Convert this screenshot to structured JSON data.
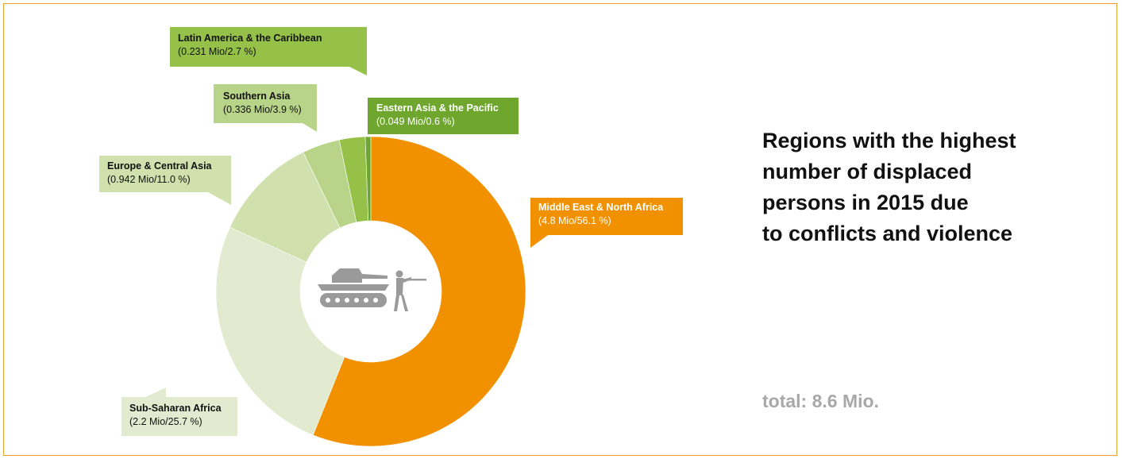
{
  "heading": {
    "lines": [
      "Regions with the highest",
      "number of displaced",
      "persons in 2015 due",
      "to conflicts and violence"
    ]
  },
  "total": "total: 8.6 Mio.",
  "center_icon": "tank-and-soldier-icon",
  "colors": {
    "frame": "#f0a030",
    "callout_text_dark": "#111111",
    "callout_text_light": "#ffffff"
  },
  "chart_data": {
    "type": "pie",
    "donut": true,
    "title": "Regions with the highest number of displaced persons in 2015 due to conflicts and violence",
    "unit": "Mio",
    "total": 8.6,
    "segments": [
      {
        "name": "Middle East & North Africa",
        "value": 4.8,
        "percent": 56.1,
        "label": "(4.8 Mio/56.1 %)",
        "color": "#f29100"
      },
      {
        "name": "Sub-Saharan Africa",
        "value": 2.2,
        "percent": 25.7,
        "label": "(2.2 Mio/25.7 %)",
        "color": "#e2ebcf"
      },
      {
        "name": "Europe & Central Asia",
        "value": 0.942,
        "percent": 11.0,
        "label": "(0.942 Mio/11.0 %)",
        "color": "#d0e1ad"
      },
      {
        "name": "Southern Asia",
        "value": 0.336,
        "percent": 3.9,
        "label": "(0.336 Mio/3.9 %)",
        "color": "#b8d488"
      },
      {
        "name": "Latin America & the Caribbean",
        "value": 0.231,
        "percent": 2.7,
        "label": "(0.231 Mio/2.7 %)",
        "color": "#95c149"
      },
      {
        "name": "Eastern Asia & the Pacific",
        "value": 0.049,
        "percent": 0.6,
        "label": "(0.049 Mio/0.6 %)",
        "color": "#6fa62d"
      }
    ]
  }
}
